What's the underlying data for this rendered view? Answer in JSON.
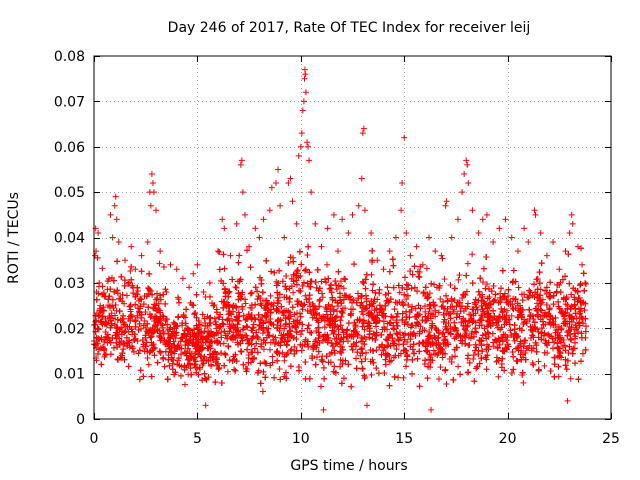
{
  "chart_data": {
    "type": "scatter",
    "title": "Day 246 of 2017, Rate Of TEC Index for receiver leij",
    "xlabel": "GPS time / hours",
    "ylabel": "ROTI / TECUs",
    "xlim": [
      0,
      25
    ],
    "ylim": [
      0,
      0.08
    ],
    "x_ticks": [
      0,
      5,
      10,
      15,
      20,
      25
    ],
    "x_tick_labels": [
      "0",
      "5",
      "10",
      "15",
      "20",
      "25"
    ],
    "y_ticks": [
      0,
      0.01,
      0.02,
      0.03,
      0.04,
      0.05,
      0.06,
      0.07,
      0.08
    ],
    "y_tick_labels": [
      "0",
      "0.01",
      "0.02",
      "0.03",
      "0.04",
      "0.05",
      "0.06",
      "0.07",
      "0.08"
    ],
    "grid": true,
    "marker": "+",
    "series": [
      {
        "name": "ROTI",
        "color": "#ff0000",
        "points": [
          [
            0.05,
            0.036
          ],
          [
            0.08,
            0.042
          ],
          [
            0.1,
            0.037
          ],
          [
            0.12,
            0.028
          ],
          [
            0.2,
            0.041
          ],
          [
            0.25,
            0.03
          ],
          [
            0.3,
            0.025
          ],
          [
            0.5,
            0.027
          ],
          [
            0.8,
            0.045
          ],
          [
            0.9,
            0.04
          ],
          [
            1.0,
            0.047
          ],
          [
            1.05,
            0.049
          ],
          [
            1.1,
            0.044
          ],
          [
            1.2,
            0.039
          ],
          [
            1.5,
            0.035
          ],
          [
            1.8,
            0.038
          ],
          [
            2.0,
            0.033
          ],
          [
            2.3,
            0.036
          ],
          [
            2.6,
            0.039
          ],
          [
            2.7,
            0.05
          ],
          [
            2.75,
            0.047
          ],
          [
            2.8,
            0.054
          ],
          [
            2.85,
            0.052
          ],
          [
            2.9,
            0.05
          ],
          [
            3.0,
            0.046
          ],
          [
            3.2,
            0.037
          ],
          [
            3.5,
            0.028
          ],
          [
            3.7,
            0.034
          ],
          [
            4.0,
            0.033
          ],
          [
            4.3,
            0.031
          ],
          [
            4.6,
            0.029
          ],
          [
            4.8,
            0.032
          ],
          [
            5.0,
            0.034
          ],
          [
            5.3,
            0.028
          ],
          [
            5.6,
            0.03
          ],
          [
            6.0,
            0.037
          ],
          [
            6.2,
            0.044
          ],
          [
            6.3,
            0.042
          ],
          [
            6.6,
            0.036
          ],
          [
            6.9,
            0.043
          ],
          [
            7.1,
            0.056
          ],
          [
            7.15,
            0.057
          ],
          [
            7.2,
            0.05
          ],
          [
            7.3,
            0.045
          ],
          [
            7.5,
            0.038
          ],
          [
            7.8,
            0.042
          ],
          [
            8.0,
            0.04
          ],
          [
            8.2,
            0.044
          ],
          [
            8.5,
            0.046
          ],
          [
            8.6,
            0.051
          ],
          [
            8.8,
            0.052
          ],
          [
            8.9,
            0.055
          ],
          [
            9.0,
            0.047
          ],
          [
            9.2,
            0.04
          ],
          [
            9.4,
            0.052
          ],
          [
            9.5,
            0.053
          ],
          [
            9.6,
            0.048
          ],
          [
            9.8,
            0.043
          ],
          [
            9.9,
            0.058
          ],
          [
            10.0,
            0.06
          ],
          [
            10.05,
            0.063
          ],
          [
            10.1,
            0.068
          ],
          [
            10.15,
            0.07
          ],
          [
            10.18,
            0.075
          ],
          [
            10.2,
            0.077
          ],
          [
            10.22,
            0.076
          ],
          [
            10.25,
            0.072
          ],
          [
            10.3,
            0.061
          ],
          [
            10.35,
            0.06
          ],
          [
            10.4,
            0.057
          ],
          [
            10.5,
            0.05
          ],
          [
            10.7,
            0.043
          ],
          [
            11.0,
            0.038
          ],
          [
            11.3,
            0.042
          ],
          [
            11.6,
            0.045
          ],
          [
            11.8,
            0.037
          ],
          [
            12.0,
            0.044
          ],
          [
            12.3,
            0.041
          ],
          [
            12.5,
            0.045
          ],
          [
            12.8,
            0.047
          ],
          [
            12.95,
            0.053
          ],
          [
            13.0,
            0.063
          ],
          [
            13.05,
            0.064
          ],
          [
            13.1,
            0.046
          ],
          [
            13.4,
            0.041
          ],
          [
            13.7,
            0.035
          ],
          [
            14.0,
            0.033
          ],
          [
            14.3,
            0.037
          ],
          [
            14.6,
            0.04
          ],
          [
            14.85,
            0.046
          ],
          [
            14.9,
            0.052
          ],
          [
            15.0,
            0.062
          ],
          [
            15.1,
            0.041
          ],
          [
            15.3,
            0.036
          ],
          [
            15.6,
            0.038
          ],
          [
            15.9,
            0.034
          ],
          [
            16.2,
            0.04
          ],
          [
            16.5,
            0.037
          ],
          [
            16.8,
            0.036
          ],
          [
            17.0,
            0.047
          ],
          [
            17.05,
            0.048
          ],
          [
            17.3,
            0.04
          ],
          [
            17.6,
            0.044
          ],
          [
            17.8,
            0.05
          ],
          [
            17.9,
            0.054
          ],
          [
            18.0,
            0.057
          ],
          [
            18.05,
            0.056
          ],
          [
            18.1,
            0.052
          ],
          [
            18.3,
            0.046
          ],
          [
            18.6,
            0.041
          ],
          [
            18.8,
            0.044
          ],
          [
            19.0,
            0.045
          ],
          [
            19.3,
            0.039
          ],
          [
            19.6,
            0.042
          ],
          [
            19.9,
            0.044
          ],
          [
            20.2,
            0.04
          ],
          [
            20.5,
            0.037
          ],
          [
            20.8,
            0.042
          ],
          [
            21.0,
            0.039
          ],
          [
            21.3,
            0.046
          ],
          [
            21.35,
            0.045
          ],
          [
            21.6,
            0.041
          ],
          [
            21.9,
            0.036
          ],
          [
            22.2,
            0.039
          ],
          [
            22.5,
            0.033
          ],
          [
            22.8,
            0.037
          ],
          [
            23.0,
            0.041
          ],
          [
            23.1,
            0.045
          ],
          [
            23.15,
            0.043
          ],
          [
            23.4,
            0.038
          ],
          [
            23.6,
            0.034
          ],
          [
            23.75,
            0.03
          ]
        ],
        "dense_band": {
          "x_range": [
            0,
            23.8
          ],
          "y_floor": 0.005,
          "y_typical": 0.015,
          "y_upper": 0.03,
          "lowest_points": [
            [
              5.4,
              0.003
            ],
            [
              11.1,
              0.002
            ],
            [
              13.2,
              0.003
            ],
            [
              16.3,
              0.002
            ],
            [
              22.9,
              0.004
            ]
          ]
        }
      }
    ]
  }
}
